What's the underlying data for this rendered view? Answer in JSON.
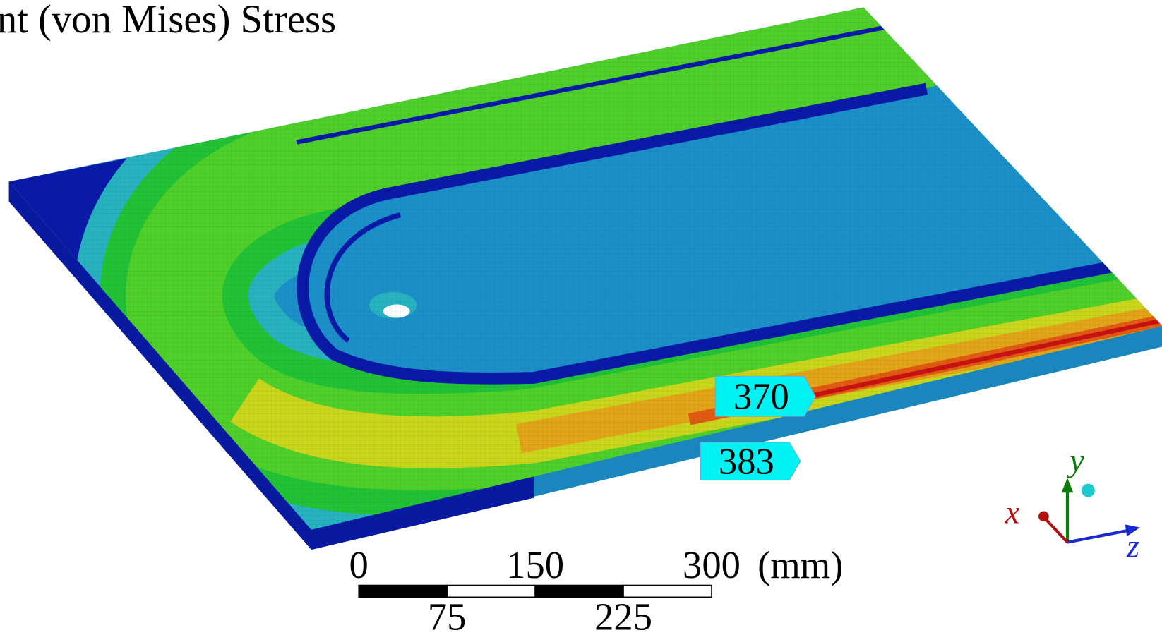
{
  "title": "nt (von Mises) Stress",
  "probes": [
    {
      "value": 370
    },
    {
      "value": 383
    }
  ],
  "scale_bar": {
    "top_ticks": [
      0,
      150,
      300
    ],
    "bottom_ticks": [
      75,
      225
    ],
    "unit": "(mm)"
  },
  "axes": {
    "x": "x",
    "y": "y",
    "z": "z"
  }
}
